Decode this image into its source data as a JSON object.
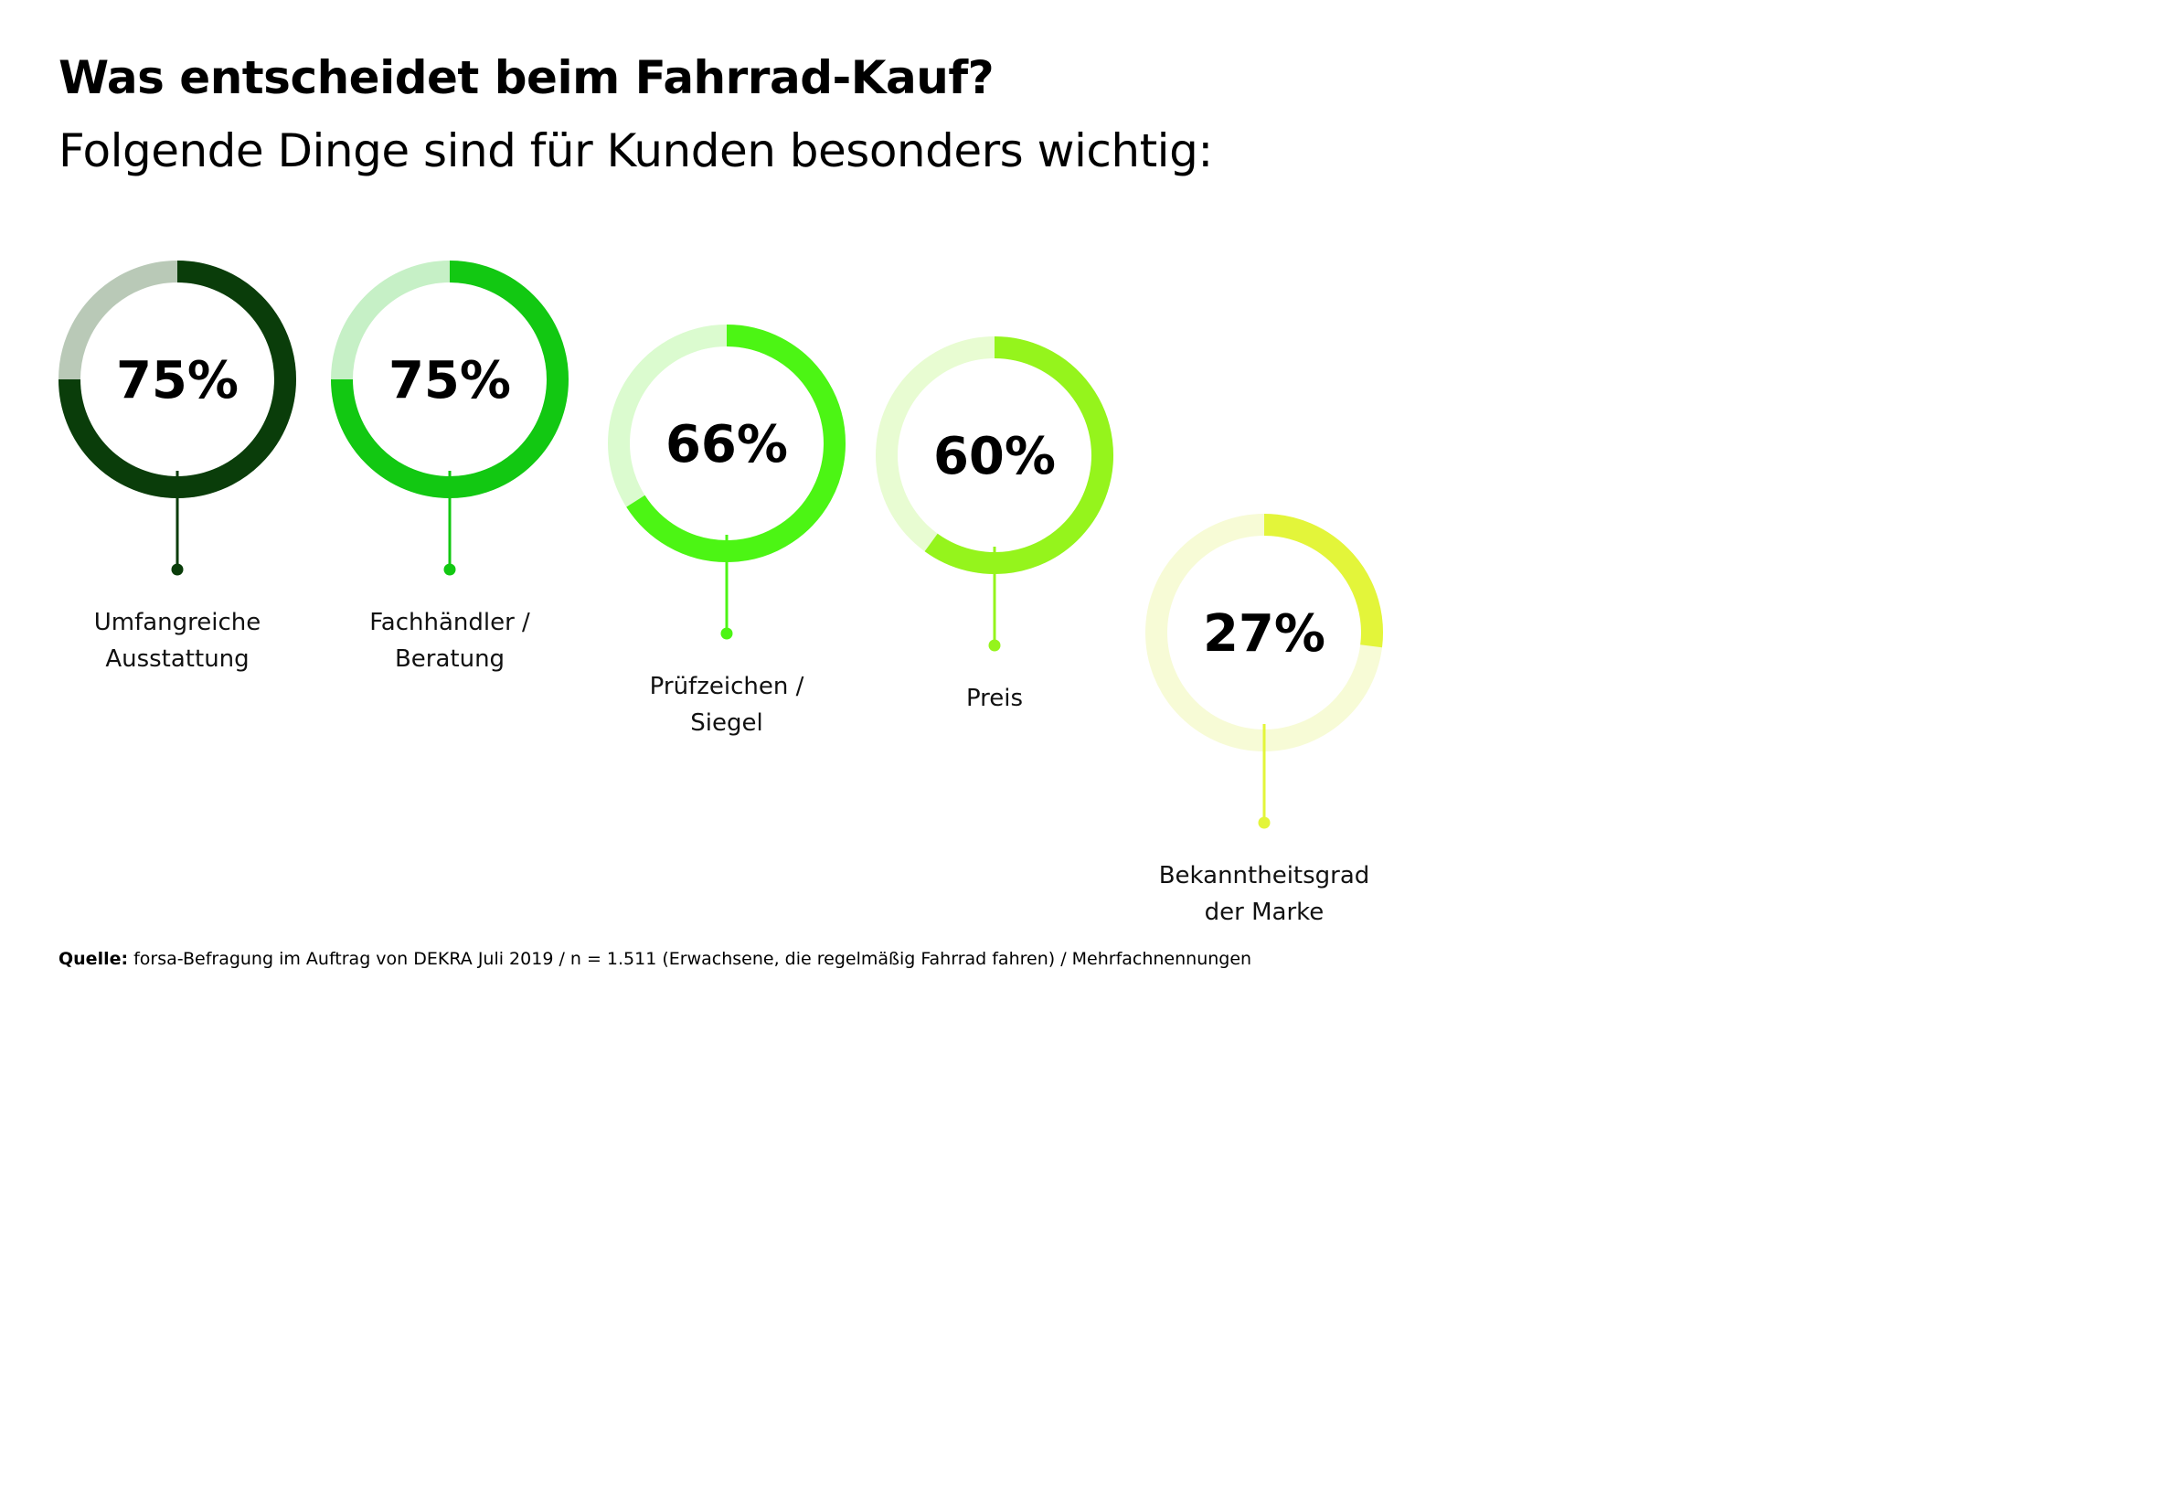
{
  "title": "Was entscheidet beim Fahrrad-Kauf?",
  "subtitle": "Folgende Dinge sind für Kunden besonders wichtig:",
  "source": {
    "label": "Quelle:",
    "text": " forsa-Befragung im Auftrag von DEKRA Juli 2019 / n = 1.511 (Erwachsene, die regelmäßig Fahrrad fahren) / Mehrfachnennungen"
  },
  "chart_data": {
    "type": "donut",
    "title": "Was entscheidet beim Fahrrad-Kauf?",
    "subtitle": "Folgende Dinge sind für Kunden besonders wichtig:",
    "unit": "%",
    "categories": [
      [
        "Umfangreiche",
        "Ausstattung"
      ],
      [
        "Fachhändler /",
        "Beratung"
      ],
      [
        "Prüfzeichen /",
        "Siegel"
      ],
      [
        "Preis"
      ],
      [
        "Bekanntheitsgrad",
        "der Marke"
      ]
    ],
    "values": [
      75,
      75,
      66,
      60,
      27
    ],
    "labels": [
      "75%",
      "75%",
      "66%",
      "60%",
      "27%"
    ],
    "colors": [
      "#0a3d0a",
      "#12c812",
      "#4cf514",
      "#95f41c",
      "#e3f53a"
    ],
    "track_colors": [
      "#b9c9b7",
      "#c6f0c6",
      "#dbfbcf",
      "#e8fcd2",
      "#f7fbd6"
    ]
  }
}
